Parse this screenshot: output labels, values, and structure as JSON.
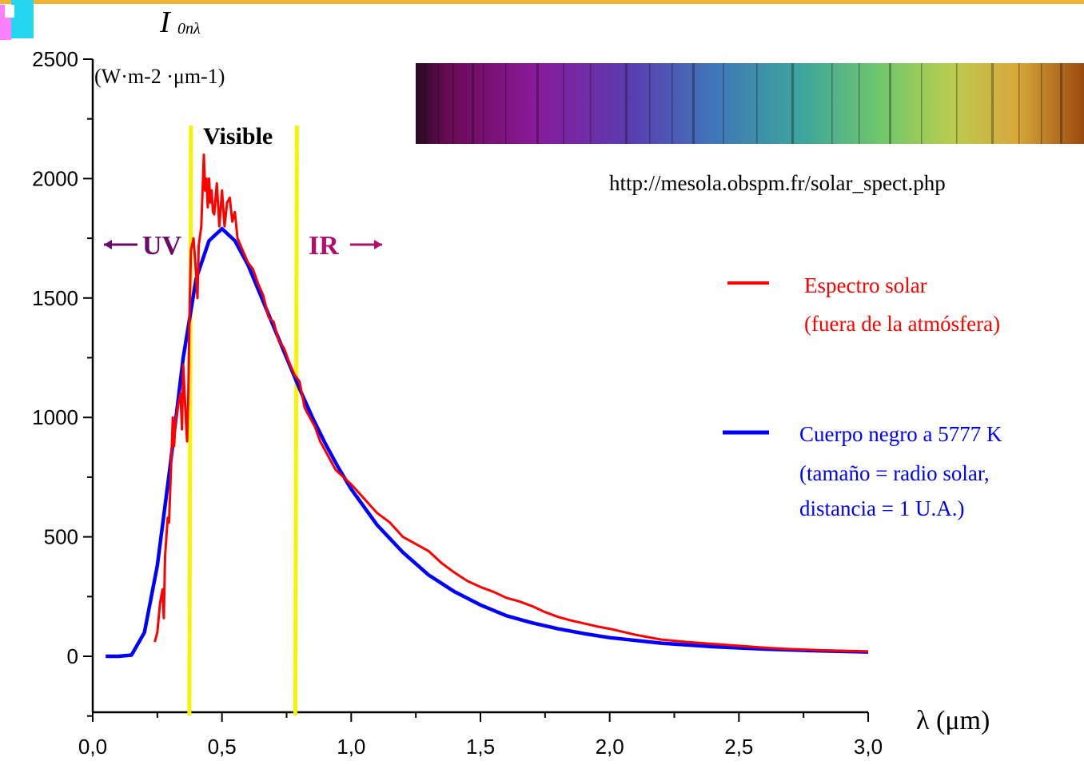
{
  "chart_data": {
    "type": "line",
    "y_symbol": "I",
    "y_symbol_sub": "0nλ",
    "y_unit": "(W·m-2 ·μm-1)",
    "x_label": "λ (μm)",
    "xlim": [
      0.0,
      3.0
    ],
    "ylim": [
      -230,
      2500
    ],
    "x_ticks": [
      0.0,
      0.5,
      1.0,
      1.5,
      2.0,
      2.5,
      3.0
    ],
    "x_tick_labels": [
      "0,0",
      "0,5",
      "1,0",
      "1,5",
      "2,0",
      "2,5",
      "3,0"
    ],
    "y_ticks": [
      0,
      500,
      1000,
      1500,
      2000,
      2500
    ],
    "y_tick_labels": [
      "0",
      "500",
      "1000",
      "1500",
      "2000",
      "2500"
    ],
    "visible_band": [
      0.38,
      0.79
    ],
    "annotations": {
      "visible": "Visible",
      "uv": "UV",
      "ir": "IR",
      "source": "http://mesola.obspm.fr/solar_spect.php"
    },
    "series": [
      {
        "name": "Espectro solar",
        "name_line2": "(fuera de la atmósfera)",
        "color": "#ff0000",
        "x": [
          0.24,
          0.25,
          0.26,
          0.27,
          0.275,
          0.28,
          0.29,
          0.295,
          0.3,
          0.31,
          0.315,
          0.32,
          0.33,
          0.34,
          0.345,
          0.35,
          0.36,
          0.365,
          0.37,
          0.375,
          0.38,
          0.39,
          0.4,
          0.405,
          0.41,
          0.42,
          0.43,
          0.435,
          0.44,
          0.445,
          0.45,
          0.455,
          0.46,
          0.465,
          0.47,
          0.48,
          0.49,
          0.5,
          0.51,
          0.52,
          0.53,
          0.54,
          0.55,
          0.56,
          0.58,
          0.6,
          0.62,
          0.64,
          0.66,
          0.68,
          0.7,
          0.72,
          0.74,
          0.76,
          0.78,
          0.8,
          0.82,
          0.84,
          0.86,
          0.88,
          0.9,
          0.92,
          0.94,
          0.96,
          0.98,
          1.0,
          1.05,
          1.1,
          1.15,
          1.2,
          1.25,
          1.3,
          1.35,
          1.4,
          1.45,
          1.5,
          1.55,
          1.6,
          1.65,
          1.7,
          1.75,
          1.8,
          1.85,
          1.9,
          1.95,
          2.0,
          2.1,
          2.2,
          2.3,
          2.4,
          2.5,
          2.6,
          2.7,
          2.8,
          2.9,
          3.0
        ],
        "values": [
          60,
          100,
          220,
          280,
          160,
          420,
          580,
          560,
          700,
          1000,
          880,
          980,
          1050,
          1100,
          950,
          1220,
          1000,
          900,
          1100,
          1480,
          1700,
          1750,
          1600,
          1500,
          1720,
          1800,
          2100,
          1950,
          2000,
          1880,
          2000,
          1900,
          1950,
          1860,
          1850,
          1980,
          1800,
          1950,
          1800,
          1900,
          1920,
          1820,
          1860,
          1750,
          1700,
          1650,
          1620,
          1560,
          1510,
          1420,
          1400,
          1320,
          1290,
          1230,
          1180,
          1150,
          1040,
          1000,
          960,
          900,
          860,
          820,
          780,
          760,
          740,
          720,
          660,
          600,
          560,
          500,
          470,
          440,
          390,
          350,
          315,
          290,
          270,
          245,
          230,
          210,
          185,
          165,
          150,
          138,
          125,
          115,
          90,
          70,
          60,
          52,
          44,
          36,
          30,
          26,
          22,
          20
        ]
      },
      {
        "name": "Cuerpo negro a 5777 K",
        "name_line2": "(tamaño = radio solar,",
        "name_line3": "distancia = 1 U.A.)",
        "color": "#0000ff",
        "x": [
          0.05,
          0.1,
          0.15,
          0.2,
          0.25,
          0.3,
          0.35,
          0.4,
          0.45,
          0.5,
          0.55,
          0.6,
          0.65,
          0.7,
          0.75,
          0.8,
          0.85,
          0.9,
          0.95,
          1.0,
          1.1,
          1.2,
          1.3,
          1.4,
          1.5,
          1.6,
          1.7,
          1.8,
          1.9,
          2.0,
          2.2,
          2.4,
          2.6,
          2.8,
          3.0
        ],
        "values": [
          0,
          0,
          5,
          100,
          380,
          800,
          1250,
          1580,
          1740,
          1790,
          1740,
          1640,
          1510,
          1380,
          1250,
          1120,
          1000,
          890,
          790,
          700,
          550,
          435,
          340,
          270,
          215,
          170,
          140,
          115,
          95,
          78,
          55,
          40,
          30,
          23,
          18
        ]
      }
    ]
  }
}
